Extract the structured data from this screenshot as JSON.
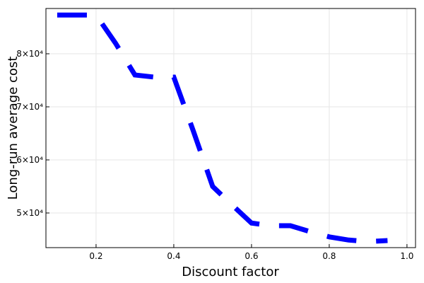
{
  "chart_data": {
    "type": "line",
    "x_label": "Discount factor",
    "y_label": "Long-run average cost",
    "x": [
      0.1,
      0.15,
      0.2,
      0.25,
      0.3,
      0.35,
      0.4,
      0.45,
      0.5,
      0.55,
      0.6,
      0.65,
      0.7,
      0.75,
      0.8,
      0.85,
      0.9,
      0.95
    ],
    "series": [
      {
        "color": "#0000ff",
        "values": [
          87300,
          87300,
          87300,
          82000,
          76000,
          75600,
          75600,
          65500,
          55000,
          51500,
          48100,
          47600,
          47600,
          46500,
          45500,
          44900,
          44600,
          44800
        ]
      }
    ],
    "xlim": [
      0.071,
      1.022
    ],
    "ylim": [
      43470,
      88530
    ],
    "xticks": [
      0.2,
      0.4,
      0.6,
      0.8,
      {
        "value": 1.0,
        "label": "1.0"
      }
    ],
    "yticks": [
      {
        "value": 50000,
        "label": "5×10⁴"
      },
      {
        "value": 60000,
        "label": "6×10⁴"
      },
      {
        "value": 70000,
        "label": "7×10⁴"
      },
      {
        "value": 80000,
        "label": "8×10⁴"
      }
    ],
    "grid": true,
    "dashed": true
  }
}
